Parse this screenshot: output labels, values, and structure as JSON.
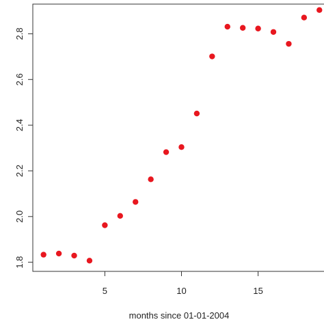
{
  "chart_data": {
    "type": "scatter",
    "xlabel": "months since 01-01-2004",
    "ylabel": "",
    "xlim": [
      0.3,
      19.3
    ],
    "ylim": [
      1.76,
      2.93
    ],
    "x_ticks": [
      5,
      10,
      15
    ],
    "x_tick_labels": [
      "5",
      "10",
      "15"
    ],
    "y_ticks": [
      1.8,
      2.0,
      2.2,
      2.4,
      2.6,
      2.8
    ],
    "y_tick_labels": [
      "1.8",
      "2.0",
      "2.2",
      "2.4",
      "2.6",
      "2.8"
    ],
    "grid": false,
    "point_color": "#e8171f",
    "series": [
      {
        "x": [
          1,
          2,
          3,
          4,
          5,
          6,
          7,
          8,
          9,
          10,
          11,
          12,
          13,
          14,
          15,
          16,
          17,
          18,
          19
        ],
        "y": [
          1.833,
          1.838,
          1.829,
          1.807,
          1.962,
          2.003,
          2.064,
          2.163,
          2.282,
          2.304,
          2.451,
          2.701,
          2.831,
          2.826,
          2.823,
          2.808,
          2.756,
          2.871,
          2.904
        ]
      }
    ]
  }
}
